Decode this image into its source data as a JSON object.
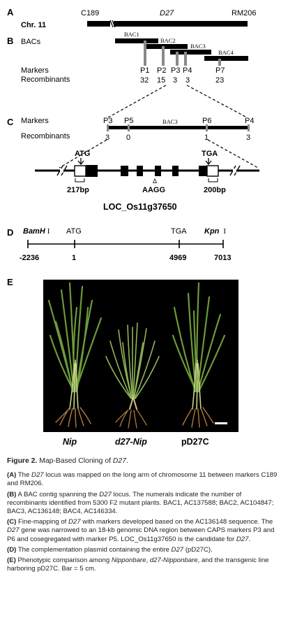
{
  "panel_a": {
    "letter": "A",
    "chr_label": "Chr. 11",
    "markers": [
      "C189",
      "D27",
      "RM206"
    ]
  },
  "panel_b": {
    "letter": "B",
    "bacs_label": "BACs",
    "bacs": [
      "BAC1",
      "BAC2",
      "BAC3",
      "BAC4"
    ],
    "markers_label": "Markers",
    "recombinants_label": "Recombinants",
    "markers": [
      {
        "name": "P1",
        "recombinants": "32"
      },
      {
        "name": "P2",
        "recombinants": "15"
      },
      {
        "name": "P3",
        "recombinants": "3"
      },
      {
        "name": "P4",
        "recombinants": "3"
      },
      {
        "name": "P7",
        "recombinants": "23"
      }
    ]
  },
  "panel_c": {
    "letter": "C",
    "markers_label": "Markers",
    "recombinants_label": "Recombinants",
    "bac_label": "BAC3",
    "markers": [
      {
        "name": "P3",
        "recombinants": "3"
      },
      {
        "name": "P5",
        "recombinants": "0"
      },
      {
        "name": "P6",
        "recombinants": "1"
      },
      {
        "name": "P4",
        "recombinants": "3"
      }
    ],
    "start_codon": "ATG",
    "stop_codon": "TGA",
    "utr5": "217bp",
    "utr3": "200bp",
    "mutation_symbol": "Δ",
    "mutation": "AAGG",
    "gene_name": "LOC_Os11g37650"
  },
  "panel_d": {
    "letter": "D",
    "bamh": "BamH",
    "kpn": "Kpn",
    "roman": "I",
    "atg": "ATG",
    "tga": "TGA",
    "positions": [
      "-2236",
      "1",
      "4969",
      "7013"
    ]
  },
  "panel_e": {
    "letter": "E",
    "labels": [
      "Nip",
      "d27-Nip",
      "pD27C"
    ]
  },
  "caption": {
    "title_bold": "Figure 2.",
    "title_rest": " Map-Based Cloning of ",
    "title_gene": "D27",
    "title_end": ".",
    "a": {
      "tag": "(A)",
      "t1": " The ",
      "g1": "D27",
      "t2": " locus was mapped on the long arm of chromosome 11 between markers C189 and RM206."
    },
    "b": {
      "tag": "(B)",
      "t1": " A BAC contig spanning the ",
      "g1": "D27",
      "t2": " locus. The numerals indicate the number of recombinants identified from 5300 F2 mutant plants. BAC1, AC137588; BAC2, AC104847; BAC3, AC136148; BAC4, AC146334."
    },
    "c": {
      "tag": "(C)",
      "t1": " Fine-mapping of ",
      "g1": "D27",
      "t2": " with markers developed based on the AC136148 sequence. The ",
      "g2": "D27",
      "t3": " gene was narrowed to an 18-kb genomic DNA region between CAPS markers P3 and P6 and cosegregated with marker P5. LOC_Os11g37650 is the candidate for ",
      "g3": "D27",
      "t4": "."
    },
    "d": {
      "tag": "(D)",
      "t1": " The complementation plasmid containing the entire ",
      "g1": "D27",
      "t2": " (pD27C)."
    },
    "e": {
      "tag": "(E)",
      "t1": " Phenotypic comparison among ",
      "i1": "Nipponbare",
      "t2": ", ",
      "i2": "d27-Nipponbare",
      "t3": ", and the transgenic line harboring pD27C. Bar = 5 cm."
    }
  },
  "colors": {
    "marker_bar": "#8a8a8a",
    "photo_bg": "#000000",
    "leaf": "#6c9a3a",
    "root": "#b07a3e"
  }
}
